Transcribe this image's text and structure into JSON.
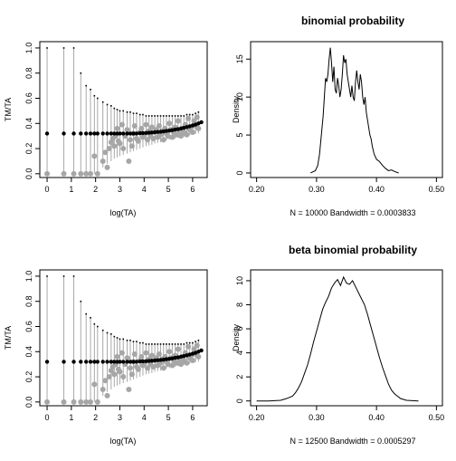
{
  "chart_data": [
    {
      "type": "scatter",
      "title": "",
      "xlabel": "log(TA)",
      "ylabel": "TM/TA",
      "xlim": [
        -0.3,
        6.6
      ],
      "ylim": [
        -0.03,
        1.05
      ],
      "xticks": [
        "0",
        "1",
        "2",
        "3",
        "4",
        "5",
        "6"
      ],
      "yticks": [
        "0.0",
        "0.2",
        "0.4",
        "0.6",
        "0.8",
        "1.0"
      ],
      "series": [
        {
          "role": "observed",
          "color": "#a6a6a6",
          "x": [
            0,
            0.69,
            1.1,
            1.39,
            1.61,
            1.79,
            1.95,
            2.08,
            2.3,
            2.4,
            2.48,
            2.56,
            2.64,
            2.71,
            2.77,
            2.83,
            2.89,
            2.94,
            3.0,
            3.09,
            3.14,
            3.22,
            3.3,
            3.37,
            3.43,
            3.5,
            3.56,
            3.61,
            3.69,
            3.76,
            3.83,
            3.89,
            3.95,
            4.01,
            4.08,
            4.14,
            4.2,
            4.26,
            4.32,
            4.38,
            4.44,
            4.5,
            4.56,
            4.62,
            4.68,
            4.74,
            4.8,
            4.86,
            4.92,
            4.98,
            5.04,
            5.1,
            5.16,
            5.22,
            5.28,
            5.34,
            5.4,
            5.46,
            5.52,
            5.58,
            5.64,
            5.7,
            5.76,
            5.82,
            5.88,
            5.94,
            6.0,
            6.06,
            6.12,
            6.18,
            6.24
          ],
          "y": [
            0,
            0,
            0,
            0,
            0,
            0,
            0.14,
            0,
            0.1,
            0.17,
            0.05,
            0.2,
            0.25,
            0.28,
            0.22,
            0.3,
            0.36,
            0.26,
            0.24,
            0.39,
            0.2,
            0.3,
            0.35,
            0.1,
            0.27,
            0.22,
            0.32,
            0.38,
            0.28,
            0.26,
            0.33,
            0.36,
            0.29,
            0.31,
            0.39,
            0.27,
            0.34,
            0.3,
            0.37,
            0.28,
            0.33,
            0.35,
            0.29,
            0.38,
            0.31,
            0.34,
            0.27,
            0.36,
            0.32,
            0.3,
            0.4,
            0.35,
            0.29,
            0.33,
            0.37,
            0.31,
            0.42,
            0.34,
            0.3,
            0.36,
            0.33,
            0.39,
            0.31,
            0.44,
            0.35,
            0.37,
            0.33,
            0.42,
            0.38,
            0.45,
            0.36
          ]
        },
        {
          "role": "fitted",
          "color": "#000000",
          "x": [
            0,
            0.69,
            1.1,
            1.39,
            1.61,
            1.79,
            1.95,
            2.08,
            2.3,
            2.48,
            2.64,
            2.77,
            2.89,
            3.0,
            3.14,
            3.3,
            3.43,
            3.56,
            3.69,
            3.83,
            3.95,
            4.08,
            4.2,
            4.32,
            4.44,
            4.56,
            4.68,
            4.8,
            4.92,
            5.04,
            5.16,
            5.28,
            5.4,
            5.52,
            5.64,
            5.76,
            5.88,
            6.0,
            6.12,
            6.24,
            6.36
          ],
          "y": [
            0.32,
            0.32,
            0.32,
            0.32,
            0.32,
            0.32,
            0.32,
            0.32,
            0.32,
            0.32,
            0.32,
            0.32,
            0.32,
            0.32,
            0.32,
            0.32,
            0.32,
            0.32,
            0.32,
            0.322,
            0.323,
            0.324,
            0.326,
            0.328,
            0.33,
            0.332,
            0.334,
            0.337,
            0.34,
            0.343,
            0.347,
            0.351,
            0.355,
            0.36,
            0.365,
            0.371,
            0.377,
            0.384,
            0.391,
            0.4,
            0.41
          ]
        }
      ],
      "intervals": {
        "x": [
          0,
          0.69,
          1.1,
          1.39,
          1.61,
          1.79,
          1.95,
          2.08,
          2.3,
          2.48,
          2.64,
          2.77,
          2.89,
          3.0,
          3.14,
          3.3,
          3.43,
          3.56,
          3.69,
          3.83,
          3.95,
          4.08,
          4.2,
          4.32,
          4.44,
          4.56,
          4.68,
          4.8,
          4.92,
          5.04,
          5.16,
          5.28,
          5.4,
          5.52,
          5.64,
          5.76,
          5.88,
          6.0,
          6.12,
          6.24
        ],
        "lower": [
          0,
          0,
          0,
          0,
          0,
          0,
          0,
          0,
          0.05,
          0.08,
          0.1,
          0.12,
          0.13,
          0.14,
          0.15,
          0.16,
          0.17,
          0.18,
          0.19,
          0.2,
          0.21,
          0.22,
          0.225,
          0.23,
          0.24,
          0.245,
          0.25,
          0.26,
          0.265,
          0.27,
          0.275,
          0.28,
          0.285,
          0.29,
          0.295,
          0.3,
          0.305,
          0.31,
          0.315,
          0.32
        ],
        "upper": [
          1.0,
          1.0,
          1.0,
          0.8,
          0.7,
          0.67,
          0.62,
          0.6,
          0.57,
          0.55,
          0.54,
          0.52,
          0.51,
          0.5,
          0.5,
          0.49,
          0.49,
          0.48,
          0.48,
          0.47,
          0.47,
          0.46,
          0.46,
          0.46,
          0.46,
          0.46,
          0.46,
          0.46,
          0.46,
          0.46,
          0.46,
          0.46,
          0.46,
          0.46,
          0.46,
          0.47,
          0.47,
          0.47,
          0.48,
          0.49
        ]
      }
    },
    {
      "type": "line",
      "title": "binomial probability",
      "xlabel": "N = 10000   Bandwidth = 0.0003833",
      "ylabel": "Density",
      "xlim": [
        0.19,
        0.51
      ],
      "ylim": [
        -0.6,
        17.3
      ],
      "xticks": [
        "0.20",
        "0.30",
        "0.40",
        "0.50"
      ],
      "xtick_values": [
        0.2,
        0.3,
        0.4,
        0.5
      ],
      "yticks": [
        "0",
        "5",
        "10",
        "15"
      ],
      "ytick_values": [
        0,
        5,
        10,
        15
      ],
      "x": [
        0.29,
        0.298,
        0.302,
        0.305,
        0.308,
        0.311,
        0.313,
        0.315,
        0.317,
        0.319,
        0.321,
        0.323,
        0.325,
        0.327,
        0.329,
        0.331,
        0.333,
        0.335,
        0.337,
        0.339,
        0.341,
        0.343,
        0.345,
        0.347,
        0.349,
        0.351,
        0.353,
        0.355,
        0.357,
        0.359,
        0.361,
        0.363,
        0.365,
        0.367,
        0.369,
        0.371,
        0.373,
        0.375,
        0.377,
        0.379,
        0.381,
        0.383,
        0.385,
        0.387,
        0.389,
        0.391,
        0.393,
        0.396,
        0.4,
        0.405,
        0.41,
        0.415,
        0.42,
        0.425,
        0.43,
        0.437
      ],
      "y": [
        0,
        0.3,
        1,
        2.5,
        5,
        7.5,
        10,
        12.5,
        12,
        13,
        15,
        16.5,
        14.5,
        12,
        14,
        11,
        10.5,
        12.5,
        11.5,
        10,
        11,
        13,
        15.5,
        14.5,
        15,
        13,
        12,
        11,
        10,
        11.5,
        10,
        9.5,
        12,
        13.5,
        12,
        11,
        13,
        12,
        10,
        9,
        10,
        8,
        7,
        6,
        5,
        4.5,
        3.5,
        2.5,
        1.8,
        1.5,
        1,
        0.6,
        0.3,
        0.4,
        0.2,
        0
      ]
    },
    {
      "type": "scatter",
      "title": "",
      "xlabel": "log(TA)",
      "ylabel": "TM/TA",
      "xlim": [
        -0.3,
        6.6
      ],
      "ylim": [
        -0.03,
        1.05
      ],
      "xticks": [
        "0",
        "1",
        "2",
        "3",
        "4",
        "5",
        "6"
      ],
      "yticks": [
        "0.0",
        "0.2",
        "0.4",
        "0.6",
        "0.8",
        "1.0"
      ],
      "series": [
        {
          "role": "observed",
          "color": "#a6a6a6",
          "x": [
            0,
            0.69,
            1.1,
            1.39,
            1.61,
            1.79,
            1.95,
            2.08,
            2.3,
            2.4,
            2.48,
            2.56,
            2.64,
            2.71,
            2.77,
            2.83,
            2.89,
            2.94,
            3.0,
            3.09,
            3.14,
            3.22,
            3.3,
            3.37,
            3.43,
            3.5,
            3.56,
            3.61,
            3.69,
            3.76,
            3.83,
            3.89,
            3.95,
            4.01,
            4.08,
            4.14,
            4.2,
            4.26,
            4.32,
            4.38,
            4.44,
            4.5,
            4.56,
            4.62,
            4.68,
            4.74,
            4.8,
            4.86,
            4.92,
            4.98,
            5.04,
            5.1,
            5.16,
            5.22,
            5.28,
            5.34,
            5.4,
            5.46,
            5.52,
            5.58,
            5.64,
            5.7,
            5.76,
            5.82,
            5.88,
            5.94,
            6.0,
            6.06,
            6.12,
            6.18,
            6.24
          ],
          "y": [
            0,
            0,
            0,
            0,
            0,
            0,
            0.14,
            0,
            0.1,
            0.17,
            0.05,
            0.2,
            0.25,
            0.28,
            0.22,
            0.3,
            0.36,
            0.26,
            0.24,
            0.39,
            0.2,
            0.3,
            0.35,
            0.1,
            0.27,
            0.22,
            0.32,
            0.38,
            0.28,
            0.26,
            0.33,
            0.36,
            0.29,
            0.31,
            0.39,
            0.27,
            0.34,
            0.3,
            0.37,
            0.28,
            0.33,
            0.35,
            0.29,
            0.38,
            0.31,
            0.34,
            0.27,
            0.36,
            0.32,
            0.3,
            0.4,
            0.35,
            0.29,
            0.33,
            0.37,
            0.31,
            0.42,
            0.34,
            0.3,
            0.36,
            0.33,
            0.39,
            0.31,
            0.44,
            0.35,
            0.37,
            0.33,
            0.42,
            0.38,
            0.45,
            0.36
          ]
        },
        {
          "role": "fitted",
          "color": "#000000",
          "x": [
            0,
            0.69,
            1.1,
            1.39,
            1.61,
            1.79,
            1.95,
            2.08,
            2.3,
            2.48,
            2.64,
            2.77,
            2.89,
            3.0,
            3.14,
            3.3,
            3.43,
            3.56,
            3.69,
            3.83,
            3.95,
            4.08,
            4.2,
            4.32,
            4.44,
            4.56,
            4.68,
            4.8,
            4.92,
            5.04,
            5.16,
            5.28,
            5.4,
            5.52,
            5.64,
            5.76,
            5.88,
            6.0,
            6.12,
            6.24,
            6.36
          ],
          "y": [
            0.32,
            0.32,
            0.32,
            0.32,
            0.32,
            0.32,
            0.32,
            0.32,
            0.32,
            0.32,
            0.32,
            0.32,
            0.32,
            0.32,
            0.32,
            0.32,
            0.32,
            0.32,
            0.32,
            0.322,
            0.323,
            0.324,
            0.326,
            0.328,
            0.33,
            0.332,
            0.334,
            0.337,
            0.34,
            0.343,
            0.347,
            0.351,
            0.355,
            0.36,
            0.365,
            0.371,
            0.377,
            0.384,
            0.391,
            0.4,
            0.41
          ]
        }
      ],
      "intervals": {
        "x": [
          0,
          0.69,
          1.1,
          1.39,
          1.61,
          1.79,
          1.95,
          2.08,
          2.3,
          2.48,
          2.64,
          2.77,
          2.89,
          3.0,
          3.14,
          3.3,
          3.43,
          3.56,
          3.69,
          3.83,
          3.95,
          4.08,
          4.2,
          4.32,
          4.44,
          4.56,
          4.68,
          4.8,
          4.92,
          5.04,
          5.16,
          5.28,
          5.4,
          5.52,
          5.64,
          5.76,
          5.88,
          6.0,
          6.12,
          6.24
        ],
        "lower": [
          0,
          0,
          0,
          0,
          0,
          0,
          0,
          0,
          0.05,
          0.08,
          0.1,
          0.12,
          0.13,
          0.14,
          0.15,
          0.16,
          0.17,
          0.18,
          0.19,
          0.2,
          0.21,
          0.22,
          0.225,
          0.23,
          0.24,
          0.245,
          0.25,
          0.26,
          0.265,
          0.27,
          0.275,
          0.28,
          0.285,
          0.29,
          0.295,
          0.3,
          0.305,
          0.31,
          0.315,
          0.32
        ],
        "upper": [
          1.0,
          1.0,
          1.0,
          0.8,
          0.7,
          0.67,
          0.62,
          0.6,
          0.57,
          0.55,
          0.54,
          0.52,
          0.51,
          0.5,
          0.5,
          0.49,
          0.49,
          0.48,
          0.48,
          0.47,
          0.47,
          0.46,
          0.46,
          0.46,
          0.46,
          0.46,
          0.46,
          0.46,
          0.46,
          0.46,
          0.46,
          0.46,
          0.46,
          0.46,
          0.46,
          0.47,
          0.47,
          0.47,
          0.48,
          0.49
        ]
      }
    },
    {
      "type": "line",
      "title": "beta binomial probability",
      "xlabel": "N = 12500   Bandwidth = 0.0005297",
      "ylabel": "Density",
      "xlim": [
        0.19,
        0.51
      ],
      "ylim": [
        -0.4,
        10.9
      ],
      "xticks": [
        "0.20",
        "0.30",
        "0.40",
        "0.50"
      ],
      "xtick_values": [
        0.2,
        0.3,
        0.4,
        0.5
      ],
      "yticks": [
        "0",
        "2",
        "4",
        "6",
        "8",
        "10"
      ],
      "ytick_values": [
        0,
        2,
        4,
        6,
        8,
        10
      ],
      "x": [
        0.2,
        0.22,
        0.24,
        0.25,
        0.26,
        0.265,
        0.27,
        0.275,
        0.28,
        0.285,
        0.29,
        0.295,
        0.3,
        0.305,
        0.31,
        0.315,
        0.32,
        0.325,
        0.33,
        0.335,
        0.34,
        0.345,
        0.35,
        0.355,
        0.36,
        0.365,
        0.37,
        0.375,
        0.38,
        0.385,
        0.39,
        0.395,
        0.4,
        0.405,
        0.41,
        0.415,
        0.42,
        0.425,
        0.43,
        0.44,
        0.45,
        0.46,
        0.47
      ],
      "y": [
        0,
        0,
        0.05,
        0.2,
        0.4,
        0.7,
        1.1,
        1.6,
        2.3,
        3.0,
        3.9,
        4.9,
        5.8,
        6.7,
        7.6,
        8.2,
        8.7,
        9.4,
        9.8,
        10.1,
        9.6,
        10.3,
        9.8,
        9.7,
        10.0,
        9.5,
        9.0,
        8.5,
        8.0,
        7.2,
        6.3,
        5.4,
        4.5,
        3.6,
        2.8,
        2.1,
        1.4,
        0.9,
        0.6,
        0.2,
        0.05,
        0.02,
        0
      ]
    }
  ]
}
